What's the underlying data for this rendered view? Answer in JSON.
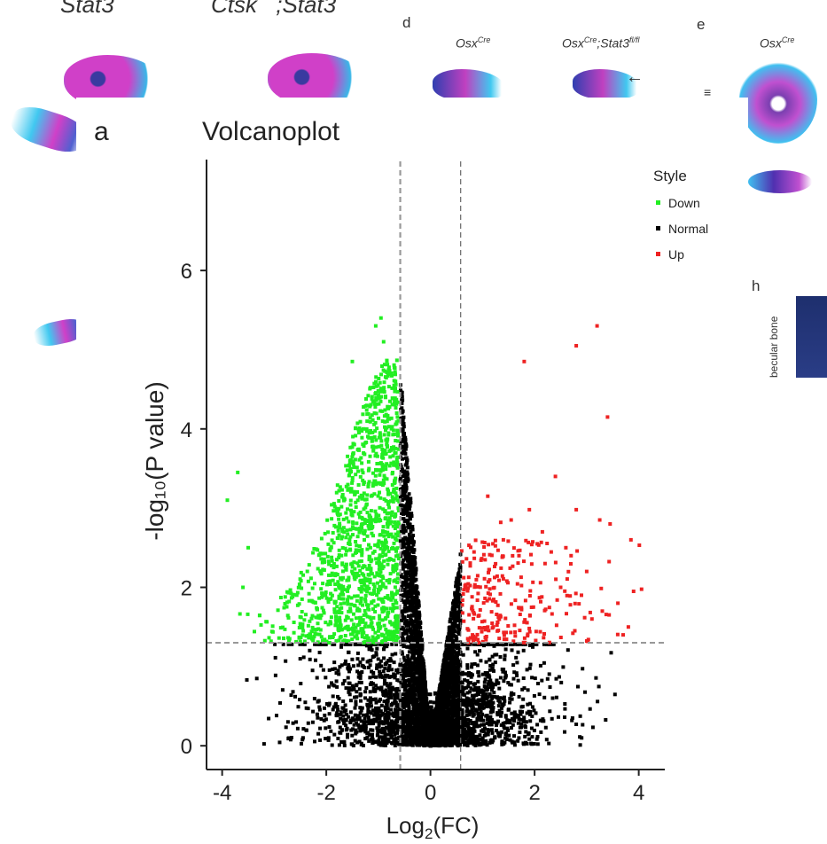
{
  "background_labels": {
    "top_left_1": "Stat3",
    "top_left_2": "Ctsk",
    "top_left_3": ";Stat3",
    "panel_d": "d",
    "panel_e": "e",
    "panel_h": "h",
    "osx_cre_d": "Osx",
    "osx_cre_d_sup": "Cre",
    "osx_stat3_main": "Osx",
    "osx_stat3_sup1": "Cre",
    "osx_stat3_mid": ";Stat3",
    "osx_stat3_sup2": "fl/fl",
    "osx_cre_e": "Osx",
    "osx_cre_e_sup": "Cre",
    "equals_mark": "≡",
    "arrow": "←",
    "bone_label": "becular bone"
  },
  "chart_data": {
    "type": "scatter",
    "panel_letter": "a",
    "title": "Volcanoplot",
    "xlabel_main": "Log",
    "xlabel_sub": "2",
    "xlabel_tail": "(FC)",
    "ylabel": "-log₁₀(P value)",
    "xlim": [
      -4.3,
      4.5
    ],
    "ylim": [
      -0.3,
      7.4
    ],
    "x_ticks": [
      -4,
      -2,
      0,
      2,
      4
    ],
    "x_tick_labels": [
      "-4",
      "-2",
      "0",
      "2",
      "4"
    ],
    "y_ticks": [
      0,
      2,
      4,
      6
    ],
    "y_tick_labels": [
      "0",
      "2",
      "4",
      "6"
    ],
    "threshold_log2fc": [
      -0.58,
      0.58
    ],
    "threshold_logp": 1.3,
    "legend": {
      "title": "Style",
      "placement": "top-right",
      "entries": [
        {
          "label": "Down",
          "color": "#22ee22"
        },
        {
          "label": "Normal",
          "color": "#000000"
        },
        {
          "label": "Up",
          "color": "#ee2222"
        }
      ]
    },
    "series": [
      {
        "name": "Up",
        "color": "#ee2222",
        "points": [
          [
            3.2,
            5.3
          ],
          [
            2.8,
            5.05
          ],
          [
            1.8,
            4.85
          ],
          [
            3.4,
            4.15
          ],
          [
            2.4,
            3.4
          ],
          [
            1.1,
            3.15
          ],
          [
            3.25,
            2.85
          ],
          [
            3.45,
            2.8
          ],
          [
            3.85,
            2.6
          ],
          [
            2.8,
            2.98
          ],
          [
            1.9,
            2.98
          ],
          [
            1.55,
            2.85
          ],
          [
            1.35,
            2.82
          ],
          [
            2.15,
            2.7
          ],
          [
            3.9,
            1.95
          ],
          [
            2.6,
            2.5
          ],
          [
            3.0,
            2.2
          ],
          [
            1.2,
            2.55
          ],
          [
            2.2,
            2.3
          ],
          [
            1.7,
            2.4
          ],
          [
            3.6,
            1.8
          ],
          [
            2.5,
            2.0
          ],
          [
            3.8,
            1.5
          ],
          [
            3.1,
            1.6
          ],
          [
            2.9,
            1.9
          ],
          [
            1.4,
            2.6
          ],
          [
            2.05,
            2.55
          ],
          [
            3.7,
            1.4
          ],
          [
            3.3,
            1.7
          ],
          [
            2.7,
            2.4
          ]
        ]
      }
    ],
    "cluster_counts": {
      "down": 1300,
      "up_cluster": 240,
      "normal_below": 2300,
      "normal_core": 2700
    }
  }
}
